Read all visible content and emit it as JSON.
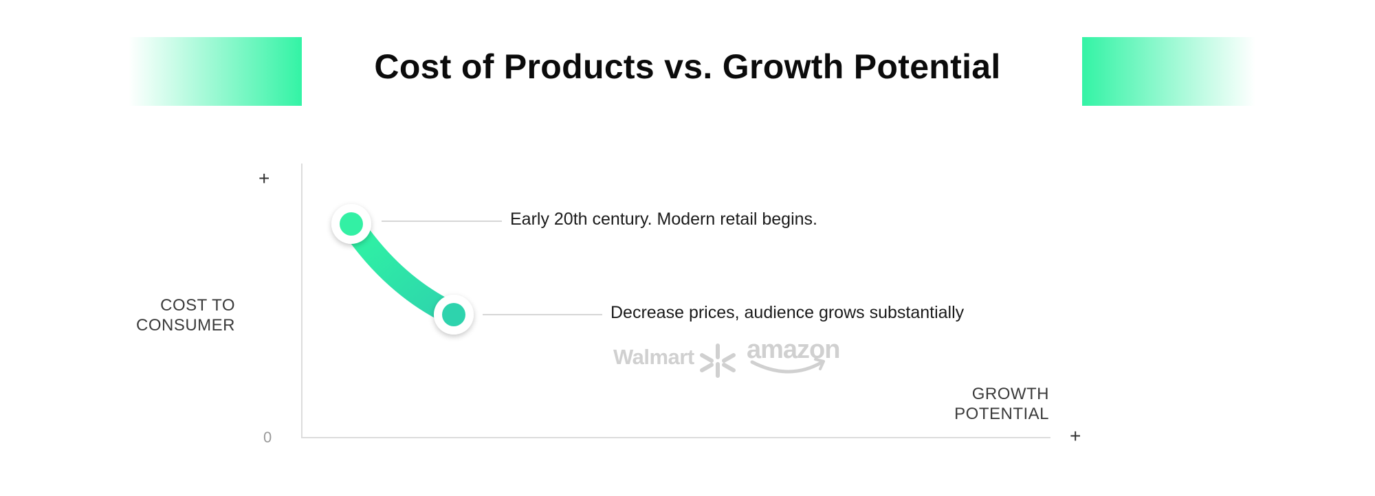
{
  "title": "Cost of Products vs. Growth Potential",
  "axes": {
    "y_label": "COST TO\nCONSUMER",
    "x_label": "GROWTH\nPOTENTIAL",
    "y_max_marker": "+",
    "x_max_marker": "+",
    "origin": "0"
  },
  "milestones": [
    {
      "label": "Early 20th century. Modern retail begins."
    },
    {
      "label": "Decrease prices, audience grows substantially"
    }
  ],
  "logos": {
    "walmart": "Walmart",
    "amazon": "amazon"
  },
  "colors": {
    "accent": "#2ff0a0",
    "accent_dark": "#2ed3ad",
    "axis": "#dcdcdc",
    "logo_gray": "#d0d0d0"
  }
}
